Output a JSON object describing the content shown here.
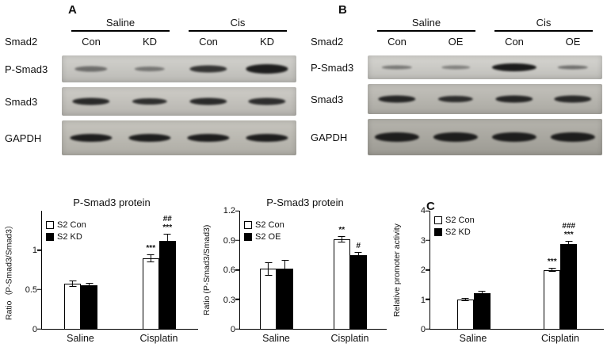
{
  "panels": {
    "a": {
      "label": "A",
      "gene": "Smad2",
      "groups": [
        "Saline",
        "Cis"
      ],
      "lanes": [
        "Con",
        "KD",
        "Con",
        "KD"
      ],
      "rows": [
        {
          "label": "P-Smad3",
          "bg": "#cbcac5",
          "bands": [
            {
              "i": 0.5,
              "w": 14,
              "h": 7
            },
            {
              "i": 0.45,
              "w": 13,
              "h": 6
            },
            {
              "i": 0.82,
              "w": 16,
              "h": 9
            },
            {
              "i": 0.95,
              "w": 18,
              "h": 12
            }
          ]
        },
        {
          "label": "Smad3",
          "bg": "#c6c4be",
          "bands": [
            {
              "i": 0.88,
              "w": 16,
              "h": 9
            },
            {
              "i": 0.85,
              "w": 15,
              "h": 8
            },
            {
              "i": 0.88,
              "w": 16,
              "h": 9
            },
            {
              "i": 0.86,
              "w": 16,
              "h": 9
            }
          ]
        },
        {
          "label": "GAPDH",
          "bg": "#bdbbb3",
          "bands": [
            {
              "i": 0.95,
              "w": 18,
              "h": 10
            },
            {
              "i": 0.95,
              "w": 18,
              "h": 10
            },
            {
              "i": 0.95,
              "w": 18,
              "h": 10
            },
            {
              "i": 0.95,
              "w": 18,
              "h": 10
            }
          ]
        }
      ]
    },
    "b": {
      "label": "B",
      "gene": "Smad2",
      "groups": [
        "Saline",
        "Cis"
      ],
      "lanes": [
        "Con",
        "OE",
        "Con",
        "OE"
      ],
      "rows": [
        {
          "label": "P-Smad3",
          "bg": "#cfcec9",
          "bands": [
            {
              "i": 0.45,
              "w": 13,
              "h": 5
            },
            {
              "i": 0.4,
              "w": 12,
              "h": 5
            },
            {
              "i": 0.97,
              "w": 19,
              "h": 10
            },
            {
              "i": 0.5,
              "w": 13,
              "h": 5
            }
          ]
        },
        {
          "label": "Smad3",
          "bg": "#b9b7b0",
          "bands": [
            {
              "i": 0.9,
              "w": 16,
              "h": 9
            },
            {
              "i": 0.85,
              "w": 15,
              "h": 8
            },
            {
              "i": 0.9,
              "w": 16,
              "h": 9
            },
            {
              "i": 0.88,
              "w": 16,
              "h": 9
            }
          ]
        },
        {
          "label": "GAPDH",
          "bg": "#a9a79f",
          "bands": [
            {
              "i": 0.95,
              "w": 19,
              "h": 12
            },
            {
              "i": 0.95,
              "w": 19,
              "h": 12
            },
            {
              "i": 0.95,
              "w": 19,
              "h": 12
            },
            {
              "i": 0.95,
              "w": 19,
              "h": 12
            }
          ]
        }
      ]
    },
    "c": {
      "label": "C"
    }
  },
  "chart_data": [
    {
      "type": "bar",
      "title": "P-Smad3 protein",
      "ylabel": "Ratio（P-Smad3/Smad3）",
      "categories": [
        "Saline",
        "Cisplatin"
      ],
      "ylim": [
        0,
        1.5
      ],
      "yticks": [
        0,
        0.5,
        1
      ],
      "ytick_labels": [
        "0",
        "0.5",
        "1"
      ],
      "grid": false,
      "legend_position": "top-left",
      "series": [
        {
          "name": "S2 Con",
          "fill": "#ffffff",
          "values": [
            0.57,
            0.9
          ],
          "errors": [
            0.04,
            0.05
          ],
          "annotations": [
            "",
            "***"
          ]
        },
        {
          "name": "S2 KD",
          "fill": "#000000",
          "values": [
            0.55,
            1.12
          ],
          "errors": [
            0.03,
            0.09
          ],
          "annotations": [
            "",
            "##\n***"
          ]
        }
      ]
    },
    {
      "type": "bar",
      "title": "P-Smad3 protein",
      "ylabel": "Ratio (P-Smad3/Smad3)",
      "categories": [
        "Saline",
        "Cisplatin"
      ],
      "ylim": [
        0,
        1.2
      ],
      "yticks": [
        0,
        0.3,
        0.6,
        0.9,
        1.2
      ],
      "ytick_labels": [
        "0",
        "0.3",
        "0.6",
        "0.9",
        "1.2"
      ],
      "grid": false,
      "legend_position": "top-left",
      "series": [
        {
          "name": "S2 Con",
          "fill": "#ffffff",
          "values": [
            0.61,
            0.91
          ],
          "errors": [
            0.07,
            0.03
          ],
          "annotations": [
            "",
            "**"
          ]
        },
        {
          "name": "S2 OE",
          "fill": "#000000",
          "values": [
            0.61,
            0.75
          ],
          "errors": [
            0.09,
            0.03
          ],
          "annotations": [
            "",
            "#"
          ]
        }
      ]
    },
    {
      "type": "bar",
      "title": "",
      "ylabel": "Relative promoter activity",
      "categories": [
        "Saline",
        "Cisplatin"
      ],
      "ylim": [
        0,
        4
      ],
      "yticks": [
        0,
        1,
        2,
        3,
        4
      ],
      "ytick_labels": [
        "0",
        "1",
        "2",
        "3",
        "4"
      ],
      "grid": false,
      "legend_position": "top-left",
      "series": [
        {
          "name": "S2 Con",
          "fill": "#ffffff",
          "values": [
            1.0,
            2.0
          ],
          "errors": [
            0.06,
            0.08
          ],
          "annotations": [
            "",
            "***"
          ]
        },
        {
          "name": "S2 KD",
          "fill": "#000000",
          "values": [
            1.22,
            2.88
          ],
          "errors": [
            0.06,
            0.1
          ],
          "annotations": [
            "",
            "###\n***"
          ]
        }
      ]
    }
  ]
}
